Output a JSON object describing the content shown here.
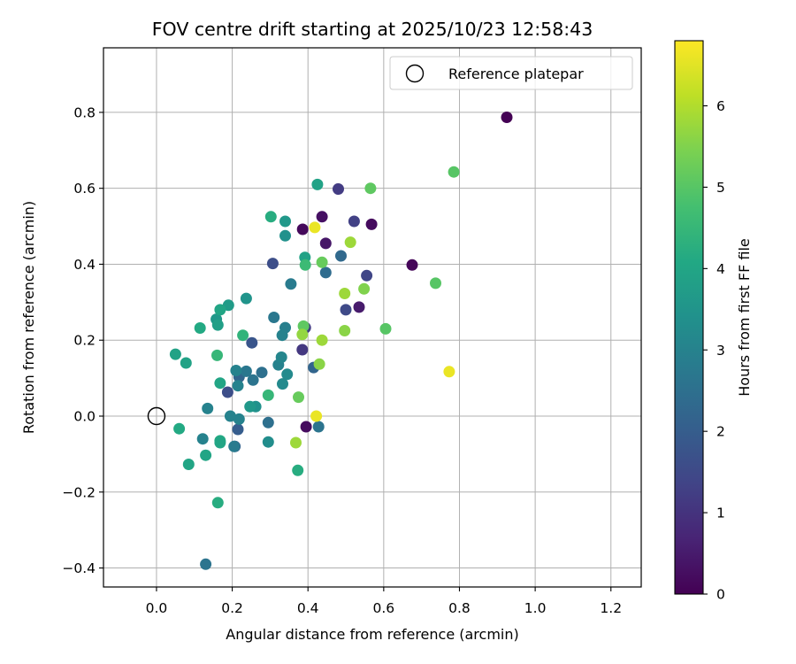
{
  "chart_data": {
    "type": "scatter",
    "title": "FOV centre drift starting at 2025/10/23 12:58:43",
    "xlabel": "Angular distance from reference (arcmin)",
    "ylabel": "Rotation from reference (arcmin)",
    "xlim": [
      -0.14,
      1.28
    ],
    "ylim": [
      -0.45,
      0.97
    ],
    "xticks": [
      0.0,
      0.2,
      0.4,
      0.6,
      0.8,
      1.0,
      1.2
    ],
    "xtick_labels": [
      "0.0",
      "0.2",
      "0.4",
      "0.6",
      "0.8",
      "1.0",
      "1.2"
    ],
    "yticks": [
      -0.4,
      -0.2,
      0.0,
      0.2,
      0.4,
      0.6,
      0.8
    ],
    "ytick_labels": [
      "−0.4",
      "−0.2",
      "0.0",
      "0.2",
      "0.4",
      "0.6",
      "0.8"
    ],
    "grid": true,
    "colorbar": {
      "label": "Hours from first FF file",
      "colormap": "viridis",
      "range": [
        0,
        6.8
      ],
      "ticks": [
        0,
        1,
        2,
        3,
        4,
        5,
        6
      ],
      "tick_labels": [
        "0",
        "1",
        "2",
        "3",
        "4",
        "5",
        "6"
      ]
    },
    "legend": {
      "placement": "top-right",
      "entries": [
        {
          "label": "Reference platepar",
          "marker": "open-circle"
        }
      ]
    },
    "reference_point": {
      "x": 0.0,
      "y": 0.0
    },
    "points": [
      {
        "x": 0.925,
        "y": 0.787,
        "h": 0.0
      },
      {
        "x": 0.675,
        "y": 0.398,
        "h": 0.1
      },
      {
        "x": 0.568,
        "y": 0.505,
        "h": 0.2
      },
      {
        "x": 0.437,
        "y": 0.525,
        "h": 0.3
      },
      {
        "x": 0.447,
        "y": 0.455,
        "h": 0.4
      },
      {
        "x": 0.386,
        "y": 0.492,
        "h": 0.15
      },
      {
        "x": 0.535,
        "y": 0.287,
        "h": 0.5
      },
      {
        "x": 0.395,
        "y": -0.028,
        "h": 0.2
      },
      {
        "x": 0.48,
        "y": 0.598,
        "h": 1.2
      },
      {
        "x": 0.522,
        "y": 0.513,
        "h": 1.3
      },
      {
        "x": 0.555,
        "y": 0.37,
        "h": 1.4
      },
      {
        "x": 0.5,
        "y": 0.28,
        "h": 1.5
      },
      {
        "x": 0.307,
        "y": 0.402,
        "h": 1.6
      },
      {
        "x": 0.385,
        "y": 0.175,
        "h": 1.1
      },
      {
        "x": 0.393,
        "y": 0.233,
        "h": 1.2
      },
      {
        "x": 0.252,
        "y": 0.193,
        "h": 1.8
      },
      {
        "x": 0.188,
        "y": 0.063,
        "h": 1.6
      },
      {
        "x": 0.487,
        "y": 0.422,
        "h": 2.3
      },
      {
        "x": 0.447,
        "y": 0.378,
        "h": 2.4
      },
      {
        "x": 0.415,
        "y": 0.128,
        "h": 2.2
      },
      {
        "x": 0.428,
        "y": -0.028,
        "h": 2.6
      },
      {
        "x": 0.215,
        "y": -0.035,
        "h": 2.0
      },
      {
        "x": 0.207,
        "y": -0.08,
        "h": 2.1
      },
      {
        "x": 0.218,
        "y": 0.103,
        "h": 2.2
      },
      {
        "x": 0.237,
        "y": 0.118,
        "h": 2.7
      },
      {
        "x": 0.255,
        "y": 0.095,
        "h": 2.6
      },
      {
        "x": 0.278,
        "y": 0.115,
        "h": 2.5
      },
      {
        "x": 0.295,
        "y": -0.017,
        "h": 2.5
      },
      {
        "x": 0.31,
        "y": 0.26,
        "h": 2.7
      },
      {
        "x": 0.355,
        "y": 0.348,
        "h": 2.8
      },
      {
        "x": 0.34,
        "y": 0.233,
        "h": 2.9
      },
      {
        "x": 0.332,
        "y": 0.213,
        "h": 3.0
      },
      {
        "x": 0.322,
        "y": 0.135,
        "h": 3.0
      },
      {
        "x": 0.33,
        "y": 0.155,
        "h": 3.1
      },
      {
        "x": 0.345,
        "y": 0.11,
        "h": 3.2
      },
      {
        "x": 0.333,
        "y": 0.085,
        "h": 3.2
      },
      {
        "x": 0.295,
        "y": -0.068,
        "h": 3.3
      },
      {
        "x": 0.262,
        "y": 0.025,
        "h": 3.4
      },
      {
        "x": 0.247,
        "y": 0.025,
        "h": 3.6
      },
      {
        "x": 0.21,
        "y": 0.12,
        "h": 3.0
      },
      {
        "x": 0.205,
        "y": -0.08,
        "h": 2.8
      },
      {
        "x": 0.215,
        "y": 0.08,
        "h": 3.0
      },
      {
        "x": 0.218,
        "y": -0.008,
        "h": 3.0
      },
      {
        "x": 0.122,
        "y": -0.06,
        "h": 3.0
      },
      {
        "x": 0.195,
        "y": 0.0,
        "h": 3.0
      },
      {
        "x": 0.135,
        "y": 0.02,
        "h": 3.0
      },
      {
        "x": 0.13,
        "y": -0.39,
        "h": 2.6
      },
      {
        "x": 0.34,
        "y": 0.475,
        "h": 3.4
      },
      {
        "x": 0.34,
        "y": 0.513,
        "h": 3.6
      },
      {
        "x": 0.237,
        "y": 0.31,
        "h": 3.5
      },
      {
        "x": 0.19,
        "y": 0.292,
        "h": 3.7
      },
      {
        "x": 0.158,
        "y": 0.255,
        "h": 3.6
      },
      {
        "x": 0.162,
        "y": 0.24,
        "h": 3.8
      },
      {
        "x": 0.168,
        "y": 0.28,
        "h": 4.0
      },
      {
        "x": 0.425,
        "y": 0.61,
        "h": 3.9
      },
      {
        "x": 0.392,
        "y": 0.418,
        "h": 3.9
      },
      {
        "x": 0.115,
        "y": 0.232,
        "h": 4.1
      },
      {
        "x": 0.05,
        "y": 0.163,
        "h": 3.9
      },
      {
        "x": 0.078,
        "y": 0.14,
        "h": 3.9
      },
      {
        "x": 0.168,
        "y": 0.087,
        "h": 4.0
      },
      {
        "x": 0.06,
        "y": -0.033,
        "h": 4.1
      },
      {
        "x": 0.085,
        "y": -0.127,
        "h": 4.0
      },
      {
        "x": 0.13,
        "y": -0.103,
        "h": 4.0
      },
      {
        "x": 0.168,
        "y": -0.065,
        "h": 4.1
      },
      {
        "x": 0.168,
        "y": -0.07,
        "h": 4.0
      },
      {
        "x": 0.162,
        "y": -0.228,
        "h": 4.2
      },
      {
        "x": 0.373,
        "y": -0.143,
        "h": 4.2
      },
      {
        "x": 0.302,
        "y": 0.525,
        "h": 4.2
      },
      {
        "x": 0.393,
        "y": 0.398,
        "h": 4.6
      },
      {
        "x": 0.16,
        "y": 0.16,
        "h": 4.5
      },
      {
        "x": 0.228,
        "y": 0.213,
        "h": 4.4
      },
      {
        "x": 0.295,
        "y": 0.055,
        "h": 4.5
      },
      {
        "x": 0.605,
        "y": 0.23,
        "h": 5.0
      },
      {
        "x": 0.737,
        "y": 0.35,
        "h": 5.0
      },
      {
        "x": 0.565,
        "y": 0.6,
        "h": 5.1
      },
      {
        "x": 0.785,
        "y": 0.643,
        "h": 5.0
      },
      {
        "x": 0.375,
        "y": 0.05,
        "h": 5.2
      },
      {
        "x": 0.388,
        "y": 0.237,
        "h": 5.1
      },
      {
        "x": 0.437,
        "y": 0.405,
        "h": 5.2
      },
      {
        "x": 0.548,
        "y": 0.335,
        "h": 5.5
      },
      {
        "x": 0.497,
        "y": 0.225,
        "h": 5.6
      },
      {
        "x": 0.497,
        "y": 0.323,
        "h": 5.8
      },
      {
        "x": 0.512,
        "y": 0.458,
        "h": 5.8
      },
      {
        "x": 0.385,
        "y": 0.215,
        "h": 5.7
      },
      {
        "x": 0.437,
        "y": 0.2,
        "h": 5.8
      },
      {
        "x": 0.43,
        "y": 0.137,
        "h": 5.6
      },
      {
        "x": 0.368,
        "y": -0.07,
        "h": 5.8
      },
      {
        "x": 0.418,
        "y": 0.497,
        "h": 6.6
      },
      {
        "x": 0.773,
        "y": 0.117,
        "h": 6.6
      },
      {
        "x": 0.422,
        "y": 0.0,
        "h": 6.6
      }
    ]
  }
}
